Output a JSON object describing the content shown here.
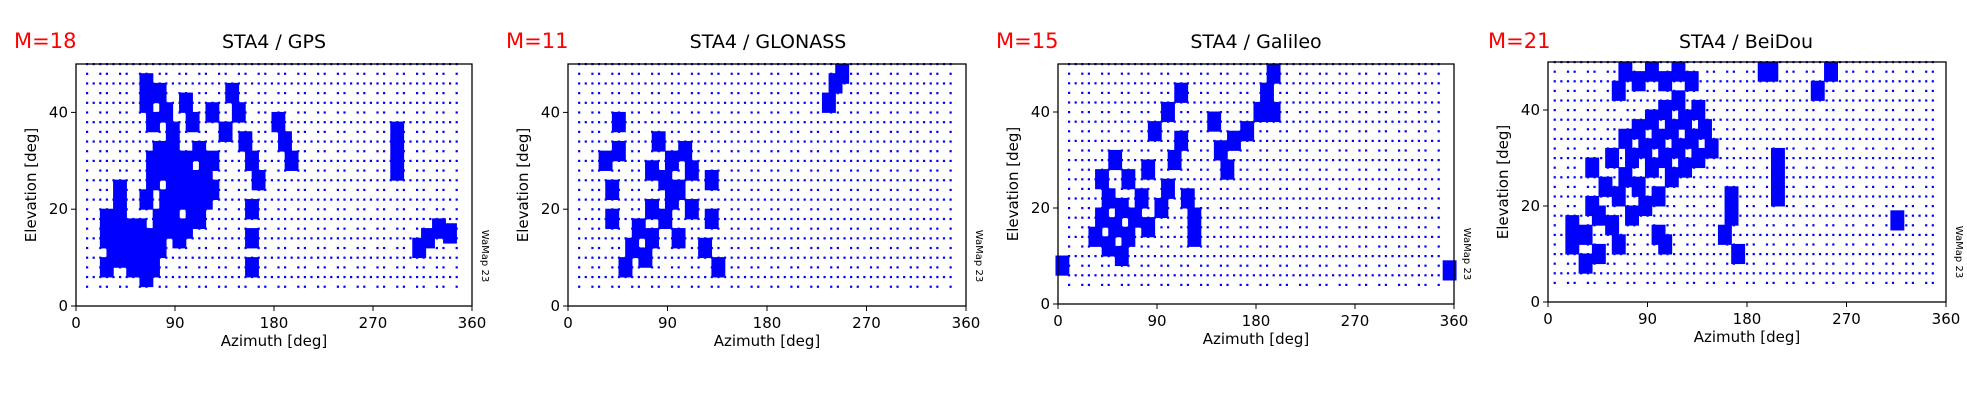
{
  "chart_data": [
    {
      "type": "scatter",
      "m_label": "M=18",
      "title": "STA4 / GPS",
      "xlabel": "Azimuth [deg]",
      "ylabel": "Elevation [deg]",
      "xlim": [
        0,
        360
      ],
      "ylim": [
        0,
        50
      ],
      "xticks": [
        "0",
        "90",
        "180",
        "270",
        "360"
      ],
      "yticks": [
        "0",
        "20",
        "40"
      ],
      "watermark": "WaMap 23",
      "series": [
        {
          "role": "masked",
          "points": [
            [
              28,
              8
            ],
            [
              28,
              14
            ],
            [
              28,
              18
            ],
            [
              34,
              10
            ],
            [
              34,
              16
            ],
            [
              40,
              12
            ],
            [
              40,
              20
            ],
            [
              40,
              24
            ],
            [
              46,
              10
            ],
            [
              46,
              16
            ],
            [
              52,
              8
            ],
            [
              52,
              14
            ],
            [
              58,
              10
            ],
            [
              58,
              16
            ],
            [
              64,
              6
            ],
            [
              64,
              12
            ],
            [
              64,
              22
            ],
            [
              70,
              8
            ],
            [
              70,
              14
            ],
            [
              70,
              26
            ],
            [
              70,
              30
            ],
            [
              76,
              12
            ],
            [
              76,
              18
            ],
            [
              76,
              28
            ],
            [
              76,
              32
            ],
            [
              82,
              16
            ],
            [
              82,
              22
            ],
            [
              82,
              30
            ],
            [
              88,
              18
            ],
            [
              88,
              26
            ],
            [
              88,
              32
            ],
            [
              94,
              14
            ],
            [
              94,
              22
            ],
            [
              94,
              28
            ],
            [
              100,
              16
            ],
            [
              100,
              24
            ],
            [
              100,
              30
            ],
            [
              106,
              20
            ],
            [
              106,
              26
            ],
            [
              112,
              18
            ],
            [
              112,
              24
            ],
            [
              112,
              32
            ],
            [
              118,
              22
            ],
            [
              118,
              28
            ],
            [
              124,
              24
            ],
            [
              124,
              30
            ],
            [
              160,
              8
            ],
            [
              160,
              14
            ],
            [
              160,
              20
            ],
            [
              320,
              14
            ],
            [
              330,
              16
            ],
            [
              340,
              15
            ],
            [
              312,
              12
            ],
            [
              64,
              46
            ],
            [
              64,
              42
            ],
            [
              70,
              38
            ],
            [
              76,
              44
            ],
            [
              82,
              40
            ],
            [
              88,
              36
            ],
            [
              100,
              42
            ],
            [
              106,
              38
            ],
            [
              124,
              40
            ],
            [
              136,
              36
            ],
            [
              142,
              44
            ],
            [
              148,
              40
            ],
            [
              154,
              34
            ],
            [
              160,
              30
            ],
            [
              166,
              26
            ],
            [
              184,
              38
            ],
            [
              190,
              34
            ],
            [
              196,
              30
            ],
            [
              292,
              36
            ],
            [
              292,
              32
            ],
            [
              292,
              28
            ]
          ]
        },
        {
          "role": "observed",
          "grid": {
            "az_step": 6,
            "el_step": 2,
            "el_min": 4,
            "el_max": 50,
            "az_min": 10,
            "az_max": 350
          }
        }
      ]
    },
    {
      "type": "scatter",
      "m_label": "M=11",
      "title": "STA4 / GLONASS",
      "xlabel": "Azimuth [deg]",
      "ylabel": "Elevation [deg]",
      "xlim": [
        0,
        360
      ],
      "ylim": [
        0,
        50
      ],
      "xticks": [
        "0",
        "90",
        "180",
        "270",
        "360"
      ],
      "yticks": [
        "0",
        "20",
        "40"
      ],
      "watermark": "WaMap 23",
      "series": [
        {
          "role": "masked",
          "points": [
            [
              40,
              18
            ],
            [
              40,
              24
            ],
            [
              46,
              32
            ],
            [
              46,
              38
            ],
            [
              52,
              8
            ],
            [
              58,
              12
            ],
            [
              64,
              16
            ],
            [
              70,
              10
            ],
            [
              76,
              14
            ],
            [
              76,
              20
            ],
            [
              76,
              28
            ],
            [
              82,
              34
            ],
            [
              88,
              26
            ],
            [
              88,
              18
            ],
            [
              94,
              22
            ],
            [
              94,
              30
            ],
            [
              100,
              14
            ],
            [
              100,
              24
            ],
            [
              106,
              32
            ],
            [
              112,
              20
            ],
            [
              112,
              28
            ],
            [
              124,
              12
            ],
            [
              130,
              18
            ],
            [
              130,
              26
            ],
            [
              136,
              8
            ],
            [
              236,
              42
            ],
            [
              242,
              46
            ],
            [
              248,
              48
            ],
            [
              34,
              30
            ]
          ]
        },
        {
          "role": "observed",
          "grid": {
            "az_step": 6,
            "el_step": 2,
            "el_min": 4,
            "el_max": 50,
            "az_min": 10,
            "az_max": 350
          }
        }
      ]
    },
    {
      "type": "scatter",
      "m_label": "M=15",
      "title": "STA4 / Galileo",
      "xlabel": "Azimuth [deg]",
      "ylabel": "Elevation [deg]",
      "xlim": [
        0,
        360
      ],
      "ylim": [
        0,
        50
      ],
      "xticks": [
        "0",
        "90",
        "180",
        "270",
        "360"
      ],
      "yticks": [
        "0",
        "20",
        "40"
      ],
      "watermark": "WaMap 23",
      "series": [
        {
          "role": "masked",
          "points": [
            [
              4,
              8
            ],
            [
              34,
              14
            ],
            [
              40,
              18
            ],
            [
              40,
              26
            ],
            [
              46,
              12
            ],
            [
              46,
              22
            ],
            [
              52,
              16
            ],
            [
              52,
              30
            ],
            [
              58,
              10
            ],
            [
              58,
              20
            ],
            [
              64,
              14
            ],
            [
              64,
              26
            ],
            [
              70,
              18
            ],
            [
              76,
              22
            ],
            [
              82,
              16
            ],
            [
              82,
              28
            ],
            [
              94,
              20
            ],
            [
              100,
              24
            ],
            [
              106,
              30
            ],
            [
              112,
              34
            ],
            [
              118,
              22
            ],
            [
              124,
              18
            ],
            [
              124,
              14
            ],
            [
              88,
              36
            ],
            [
              100,
              40
            ],
            [
              112,
              44
            ],
            [
              142,
              38
            ],
            [
              148,
              32
            ],
            [
              154,
              28
            ],
            [
              160,
              34
            ],
            [
              172,
              36
            ],
            [
              184,
              40
            ],
            [
              190,
              44
            ],
            [
              196,
              48
            ],
            [
              196,
              40
            ],
            [
              356,
              7
            ]
          ]
        },
        {
          "role": "observed",
          "grid": {
            "az_step": 6,
            "el_step": 2,
            "el_min": 4,
            "el_max": 50,
            "az_min": 10,
            "az_max": 350
          }
        }
      ]
    },
    {
      "type": "scatter",
      "m_label": "M=21",
      "title": "STA4 / BeiDou",
      "xlabel": "Azimuth [deg]",
      "ylabel": "Elevation [deg]",
      "xlim": [
        0,
        360
      ],
      "ylim": [
        0,
        50
      ],
      "xticks": [
        "0",
        "90",
        "180",
        "270",
        "360"
      ],
      "yticks": [
        "0",
        "20",
        "40"
      ],
      "watermark": "WaMap 23",
      "series": [
        {
          "role": "masked",
          "points": [
            [
              22,
              12
            ],
            [
              22,
              16
            ],
            [
              34,
              8
            ],
            [
              34,
              14
            ],
            [
              40,
              20
            ],
            [
              40,
              28
            ],
            [
              46,
              10
            ],
            [
              46,
              18
            ],
            [
              52,
              24
            ],
            [
              58,
              16
            ],
            [
              58,
              30
            ],
            [
              64,
              12
            ],
            [
              64,
              22
            ],
            [
              70,
              26
            ],
            [
              70,
              34
            ],
            [
              76,
              18
            ],
            [
              76,
              30
            ],
            [
              82,
              24
            ],
            [
              82,
              36
            ],
            [
              88,
              20
            ],
            [
              88,
              32
            ],
            [
              94,
              28
            ],
            [
              94,
              38
            ],
            [
              100,
              22
            ],
            [
              100,
              34
            ],
            [
              106,
              30
            ],
            [
              106,
              40
            ],
            [
              112,
              26
            ],
            [
              112,
              36
            ],
            [
              118,
              32
            ],
            [
              118,
              42
            ],
            [
              124,
              28
            ],
            [
              124,
              38
            ],
            [
              130,
              34
            ],
            [
              136,
              30
            ],
            [
              136,
              40
            ],
            [
              142,
              36
            ],
            [
              148,
              32
            ],
            [
              100,
              14
            ],
            [
              106,
              12
            ],
            [
              160,
              14
            ],
            [
              166,
              18
            ],
            [
              166,
              22
            ],
            [
              172,
              10
            ],
            [
              64,
              44
            ],
            [
              70,
              48
            ],
            [
              82,
              46
            ],
            [
              94,
              48
            ],
            [
              106,
              46
            ],
            [
              118,
              48
            ],
            [
              130,
              46
            ],
            [
              196,
              48
            ],
            [
              202,
              48
            ],
            [
              208,
              30
            ],
            [
              208,
              26
            ],
            [
              208,
              22
            ],
            [
              244,
              44
            ],
            [
              256,
              48
            ],
            [
              316,
              17
            ]
          ]
        },
        {
          "role": "observed",
          "grid": {
            "az_step": 6,
            "el_step": 2,
            "el_min": 4,
            "el_max": 50,
            "az_min": 6,
            "az_max": 350
          }
        }
      ]
    }
  ],
  "colors": {
    "marker": "#0000ff",
    "m_label": "#ff0000",
    "axis": "#000000",
    "text": "#000000",
    "background": "#ffffff"
  }
}
